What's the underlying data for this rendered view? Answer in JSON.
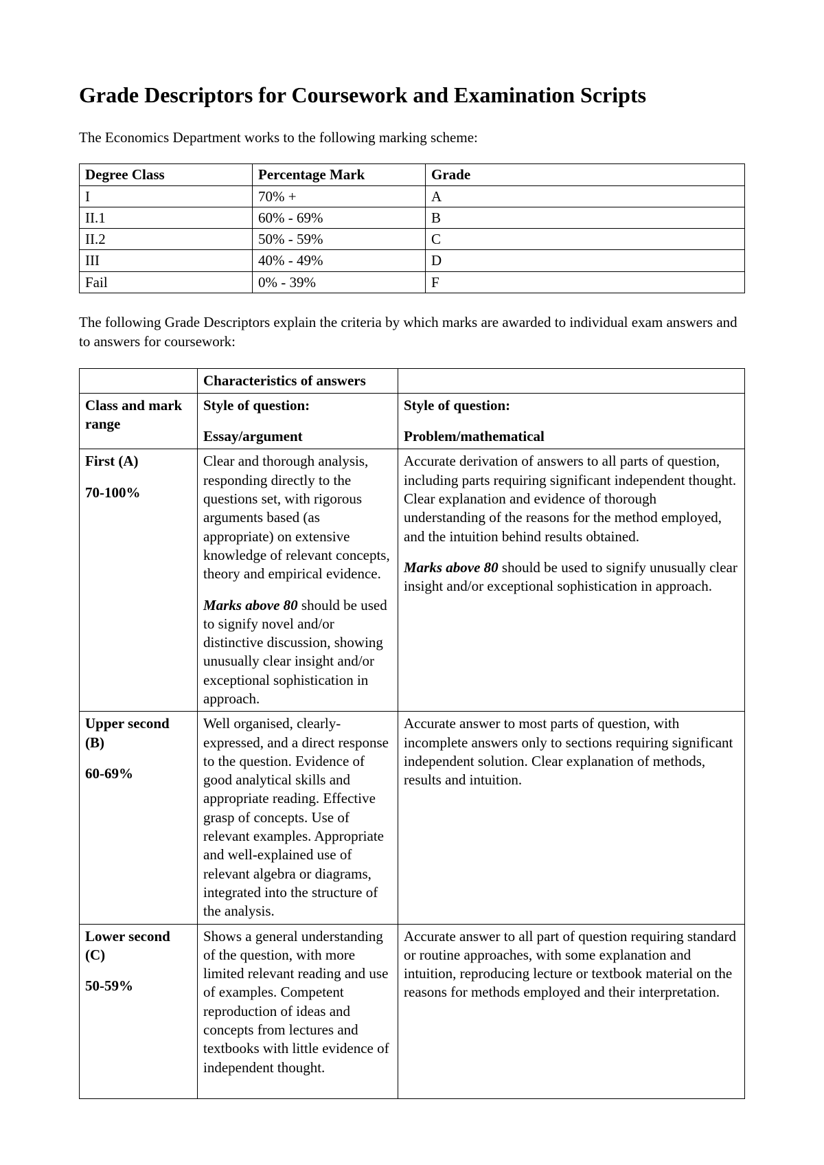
{
  "title": "Grade Descriptors for Coursework and Examination Scripts",
  "intro1": "The Economics Department works to the following marking scheme:",
  "intro2": "The following Grade Descriptors explain the criteria by which marks are awarded to individual exam answers and to answers for coursework:",
  "grade_table": {
    "headers": {
      "degree_class": "Degree Class",
      "percentage_mark": "Percentage Mark",
      "grade": "Grade"
    },
    "rows": [
      {
        "degree": "I",
        "percent": "70% +",
        "grade": "A"
      },
      {
        "degree": "II.1",
        "percent": "60% - 69%",
        "grade": "B"
      },
      {
        "degree": "II.2",
        "percent": "50% - 59%",
        "grade": "C"
      },
      {
        "degree": "III",
        "percent": "40% - 49%",
        "grade": "D"
      },
      {
        "degree": "Fail",
        "percent": "0% - 39%",
        "grade": "F"
      }
    ]
  },
  "descriptor_table": {
    "header_row1": {
      "col1": "",
      "col2": "Characteristics of answers",
      "col3": ""
    },
    "header_row2": {
      "col1": "Class and mark range",
      "col2_a": "Style of question:",
      "col2_b": "Essay/argument",
      "col3_a": "Style of question:",
      "col3_b": "Problem/mathematical"
    },
    "rows": [
      {
        "class_label": "First (A)",
        "range": "70-100%",
        "essay_p1": "Clear and thorough analysis, responding directly to the questions set, with rigorous arguments based (as appropriate) on extensive knowledge of relevant concepts, theory and empirical evidence.",
        "essay_p2_emph": "Marks above 80",
        "essay_p2_rest": " should be used to signify novel and/or distinctive discussion, showing unusually clear insight and/or exceptional sophistication in approach.",
        "problem_p1": "Accurate derivation of answers to all parts of question, including parts requiring significant independent thought.  Clear explanation and evidence of thorough understanding of the reasons for the method employed, and the intuition behind results obtained.",
        "problem_p2_emph": "Marks above 80",
        "problem_p2_rest": " should be used to signify unusually clear insight and/or exceptional sophistication in approach."
      },
      {
        "class_label": "Upper second (B)",
        "range": "60-69%",
        "essay_p1": "Well organised, clearly-expressed, and a direct response to the question.  Evidence of good analytical skills and appropriate reading.  Effective grasp of concepts.  Use of relevant examples.  Appropriate and well-explained use of relevant algebra or diagrams, integrated into the structure of the analysis.",
        "problem_p1": "Accurate answer to most parts of question, with incomplete answers only to sections requiring significant independent solution.  Clear explanation of methods, results and intuition."
      },
      {
        "class_label": "Lower second (C)",
        "range": "50-59%",
        "essay_p1": "Shows a general understanding of the question, with more limited relevant reading and use of examples.  Competent reproduction of ideas and concepts from lectures and textbooks with little evidence of independent thought.",
        "problem_p1": "Accurate answer to all part of question requiring standard or routine approaches, with some explanation and intuition, reproducing lecture or textbook material on the reasons for methods employed and their interpretation."
      }
    ]
  }
}
